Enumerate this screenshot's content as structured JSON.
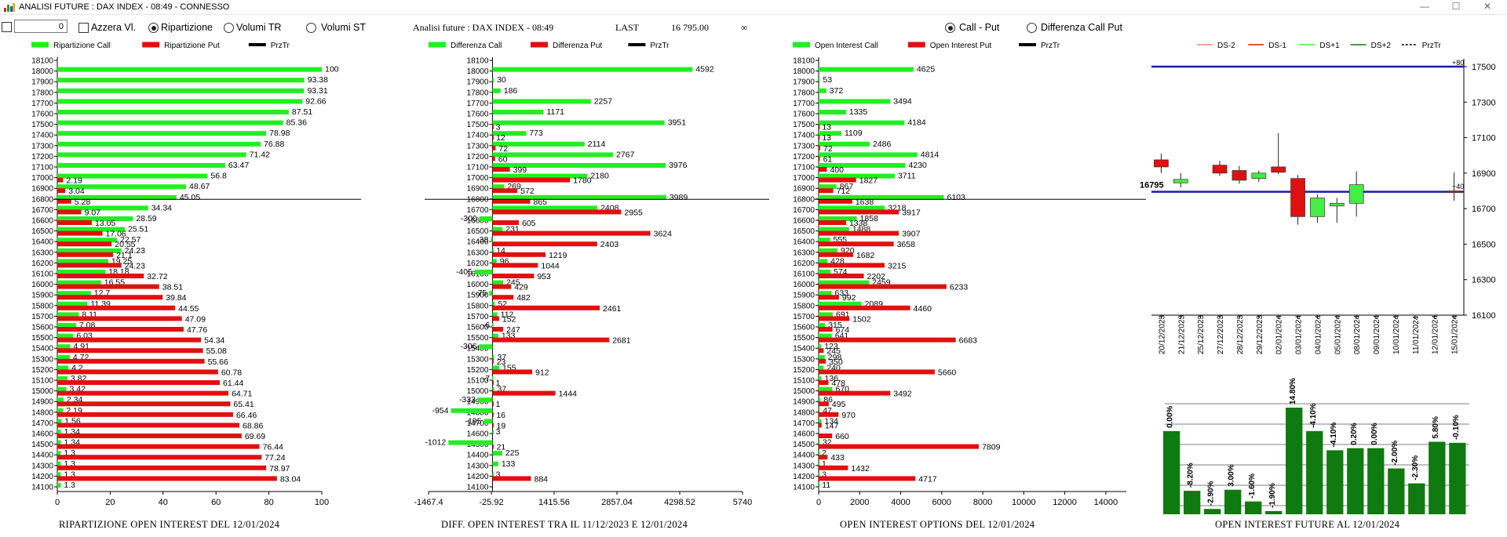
{
  "window": {
    "title": "ANALISI FUTURE : DAX INDEX - 08:49 - CONNESSO",
    "minimize_label": "—",
    "maximize_label": "☐",
    "close_label": "✕"
  },
  "toolbar": {
    "value_input": "0",
    "azzera_label": "Azzera Vl.",
    "ripartizione_label": "Ripartizione",
    "volumi_tr_label": "Volumi TR",
    "volumi_st_label": "Volumi ST",
    "selected_mode": "Ripartizione",
    "call_put_label": "Call - Put",
    "diff_call_put_label": "Differenza Call Put",
    "selected_view": "Call - Put"
  },
  "header": {
    "analysis_label": "Analisi future : DAX INDEX - 08:49",
    "last_label": "LAST",
    "last_value": "16 795.00",
    "infinity_symbol": "∞"
  },
  "colors": {
    "call": "#22ee22",
    "put": "#e01010",
    "przTr": "#000000",
    "ds_minus2": "#f08080",
    "ds_minus1": "#e01010",
    "ds_plus1": "#44ee44",
    "ds_plus2": "#117711",
    "price_line": "#1a1aaa",
    "oi_bar": "#0f7a0f"
  },
  "chart_data": [
    {
      "type": "bar",
      "orientation": "horizontal",
      "title": "RIPARTIZIONE OPEN INTEREST DEL 12/01/2024",
      "categories": [
        "18100",
        "18000",
        "17900",
        "17800",
        "17700",
        "17600",
        "17500",
        "17400",
        "17300",
        "17200",
        "17100",
        "17000",
        "16900",
        "16800",
        "16700",
        "16600",
        "16500",
        "16400",
        "16300",
        "16200",
        "16100",
        "16000",
        "15900",
        "15800",
        "15700",
        "15600",
        "15500",
        "15400",
        "15300",
        "15200",
        "15100",
        "15000",
        "14900",
        "14800",
        "14700",
        "14600",
        "14500",
        "14400",
        "14300",
        "14200",
        "14100"
      ],
      "series": [
        {
          "name": "Ripartizione Call",
          "values": [
            null,
            100,
            93.38,
            93.31,
            92.66,
            87.51,
            85.36,
            78.98,
            76.88,
            71.42,
            63.47,
            56.8,
            48.67,
            45.05,
            34.34,
            28.59,
            25.51,
            22.57,
            24.23,
            19.25,
            18.18,
            16.55,
            12.7,
            11.39,
            8.11,
            7.08,
            6.03,
            4.91,
            4.72,
            4.2,
            3.82,
            3.42,
            2.34,
            2.19,
            1.56,
            1.34,
            1.34,
            1.3,
            1.3,
            1.3,
            1.3
          ]
        },
        {
          "name": "Ripartizione Put",
          "values": [
            null,
            null,
            null,
            null,
            null,
            null,
            null,
            null,
            null,
            null,
            null,
            2.19,
            3.04,
            5.28,
            9.07,
            13.05,
            17.06,
            20.55,
            21.1,
            24.23,
            32.72,
            38.51,
            39.84,
            44.55,
            47.09,
            47.76,
            54.34,
            55.08,
            55.66,
            60.78,
            61.44,
            64.71,
            65.41,
            66.46,
            68.86,
            69.69,
            76.44,
            77.24,
            78.97,
            83.04,
            null
          ]
        }
      ],
      "legend": [
        "Ripartizione Call",
        "Ripartizione Put",
        "PrzTr"
      ],
      "xlim": [
        0,
        100
      ],
      "xticks": [
        "0",
        "20",
        "40",
        "60",
        "80",
        "100"
      ],
      "przTr": 16795
    },
    {
      "type": "bar",
      "orientation": "horizontal",
      "title": "DIFF. OPEN INTEREST TRA IL 11/12/2023 E 12/01/2024",
      "header_label": "Analisi future : DAX INDEX - 08:49",
      "categories": [
        "18100",
        "18000",
        "17900",
        "17800",
        "17700",
        "17600",
        "17500",
        "17400",
        "17300",
        "17200",
        "17100",
        "17000",
        "16900",
        "16800",
        "16700",
        "16600",
        "16500",
        "16400",
        "16300",
        "16200",
        "16100",
        "16000",
        "15900",
        "15800",
        "15700",
        "15600",
        "15500",
        "15400",
        "15300",
        "15200",
        "15100",
        "15000",
        "14900",
        "14800",
        "14700",
        "14600",
        "14500",
        "14400",
        "14300",
        "14200",
        "14100"
      ],
      "series": [
        {
          "name": "Differenza Call",
          "values": [
            null,
            4592,
            30,
            186,
            2257,
            1171,
            3951,
            773,
            2114,
            2767,
            3976,
            2180,
            269,
            3989,
            2408,
            -300,
            231,
            -38,
            14,
            96,
            -405,
            245,
            -75,
            52,
            112,
            -6,
            133,
            -306,
            37,
            155,
            -7,
            37,
            -333,
            -954,
            -195,
            3,
            -1012,
            225,
            133,
            3,
            null
          ]
        },
        {
          "name": "Differenza Put",
          "values": [
            null,
            null,
            null,
            null,
            null,
            null,
            3,
            12,
            72,
            60,
            399,
            1780,
            572,
            865,
            2955,
            605,
            3624,
            2403,
            1219,
            1044,
            953,
            429,
            482,
            2461,
            152,
            247,
            2681,
            null,
            23,
            912,
            1,
            1444,
            1,
            16,
            19,
            null,
            21,
            null,
            null,
            884,
            null
          ]
        }
      ],
      "legend": [
        "Differenza Call",
        "Differenza Put",
        "PrzTr"
      ],
      "xlim": [
        -1467.4,
        5740
      ],
      "xticks": [
        "-1467.4",
        "-25.92",
        "1415.56",
        "2857.04",
        "4298.52",
        "5740"
      ],
      "przTr": 16795
    },
    {
      "type": "bar",
      "orientation": "horizontal",
      "title": "OPEN INTEREST OPTIONS DEL 12/01/2024",
      "categories": [
        "18100",
        "18000",
        "17900",
        "17800",
        "17700",
        "17600",
        "17500",
        "17400",
        "17300",
        "17200",
        "17100",
        "17000",
        "16900",
        "16800",
        "16700",
        "16600",
        "16500",
        "16400",
        "16300",
        "16200",
        "16100",
        "16000",
        "15900",
        "15800",
        "15700",
        "15600",
        "15500",
        "15400",
        "15300",
        "15200",
        "15100",
        "15000",
        "14900",
        "14800",
        "14700",
        "14600",
        "14500",
        "14400",
        "14300",
        "14200",
        "14100"
      ],
      "series": [
        {
          "name": "Open Interest Call",
          "values": [
            null,
            4625,
            53,
            372,
            3494,
            1335,
            4184,
            1109,
            2486,
            4814,
            4230,
            3711,
            867,
            6103,
            3218,
            1858,
            1488,
            555,
            920,
            428,
            574,
            2459,
            633,
            2089,
            691,
            315,
            641,
            123,
            298,
            240,
            136,
            670,
            86,
            47,
            134,
            null,
            32,
            2,
            1,
            3,
            11
          ]
        },
        {
          "name": "Open Interest Put",
          "values": [
            null,
            null,
            null,
            null,
            null,
            null,
            13,
            13,
            72,
            61,
            400,
            1827,
            712,
            1638,
            3917,
            1338,
            3907,
            3658,
            1682,
            3215,
            2202,
            6233,
            992,
            4460,
            1502,
            674,
            6683,
            245,
            350,
            5660,
            478,
            3492,
            495,
            970,
            147,
            660,
            7809,
            433,
            1432,
            4717,
            null
          ]
        }
      ],
      "legend": [
        "Open Interest Call",
        "Open Interest Put",
        "PrzTr"
      ],
      "xlim": [
        0,
        15000
      ],
      "xticks": [
        "0",
        "2000",
        "4000",
        "6000",
        "8000",
        "10000",
        "12000",
        "14000"
      ],
      "przTr": 16795
    },
    {
      "type": "candlestick",
      "legend": [
        "DS-2",
        "DS-1",
        "DS+1",
        "DS+2",
        "PrzTr"
      ],
      "ylim": [
        16100,
        17500
      ],
      "yticks": [
        "17500",
        "17300",
        "17100",
        "16900",
        "16700",
        "16500",
        "16300",
        "16100"
      ],
      "price_label": "16795",
      "price_line": 16795,
      "upper_line": 17500,
      "right_markers": [
        "+80",
        "+40"
      ],
      "dates": [
        "20/12/2023",
        "21/12/2023",
        "25/12/2023",
        "27/12/2023",
        "28/12/2023",
        "29/12/2023",
        "02/01/2024",
        "03/01/2024",
        "04/01/2024",
        "05/01/2024",
        "08/01/2024",
        "09/01/2024",
        "10/01/2024",
        "11/01/2024",
        "12/01/2024",
        "15/01/2024"
      ],
      "candles": [
        {
          "o": 16935,
          "c": 16975,
          "h": 17010,
          "l": 16900,
          "color": "ds_minus1"
        },
        {
          "o": 16845,
          "c": 16865,
          "h": 16900,
          "l": 16820,
          "color": "ds_plus1"
        },
        null,
        {
          "o": 16900,
          "c": 16945,
          "h": 16970,
          "l": 16885,
          "color": "ds_minus1"
        },
        {
          "o": 16860,
          "c": 16915,
          "h": 16940,
          "l": 16840,
          "color": "ds_minus1"
        },
        {
          "o": 16900,
          "c": 16870,
          "h": 16915,
          "l": 16850,
          "color": "ds_plus1"
        },
        {
          "o": 16905,
          "c": 16935,
          "h": 17125,
          "l": 16895,
          "color": "ds_minus1"
        },
        {
          "o": 16870,
          "c": 16655,
          "h": 16890,
          "l": 16610,
          "color": "ds_minus1"
        },
        {
          "o": 16760,
          "c": 16655,
          "h": 16780,
          "l": 16620,
          "color": "ds_plus1"
        },
        {
          "o": 16730,
          "c": 16715,
          "h": 16760,
          "l": 16620,
          "color": "ds_plus1"
        },
        {
          "o": 16730,
          "c": 16835,
          "h": 16910,
          "l": 16655,
          "color": "ds_plus1"
        },
        null,
        null,
        null,
        null,
        {
          "o": 16795,
          "c": 16800,
          "h": 16905,
          "l": 16745,
          "color": "ds_minus1"
        }
      ]
    },
    {
      "type": "bar",
      "title": "OPEN INTEREST FUTURE AL 12/01/2024",
      "labels": [
        "0.00%",
        "-8.20%",
        "-2.90%",
        "3.00%",
        "-1.60%",
        "-1.90%",
        "14.80%",
        "-4.10%",
        "-4.10%",
        "0.20%",
        "0.00%",
        "-2.00%",
        "-2.30%",
        "5.80%",
        "-0.10%"
      ],
      "values": [
        78,
        22,
        5,
        23,
        12,
        3,
        100,
        78,
        60,
        62,
        62,
        43,
        29,
        68,
        67
      ]
    }
  ]
}
